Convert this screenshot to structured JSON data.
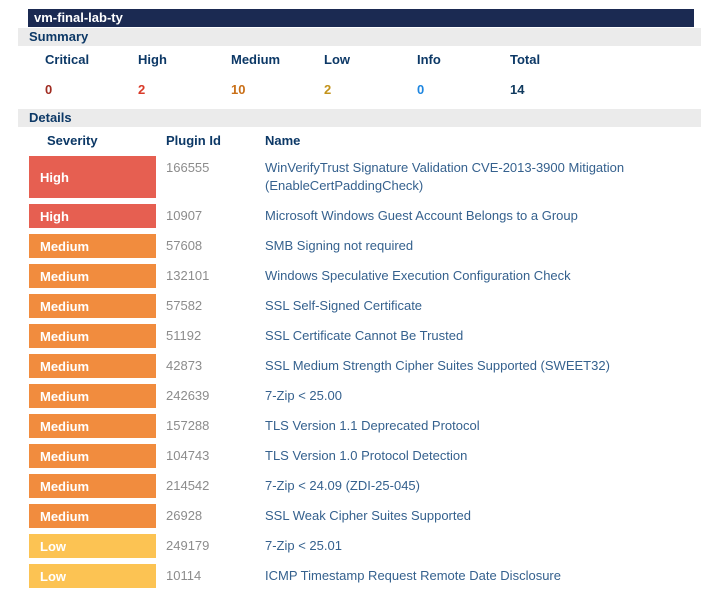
{
  "window": {
    "title": "vm-final-lab-ty"
  },
  "summary": {
    "heading": "Summary",
    "columns": [
      {
        "label": "Critical",
        "value": "0",
        "color": "#a02c21"
      },
      {
        "label": "High",
        "value": "2",
        "color": "#d93a28"
      },
      {
        "label": "Medium",
        "value": "10",
        "color": "#c96f17"
      },
      {
        "label": "Low",
        "value": "2",
        "color": "#c3931b"
      },
      {
        "label": "Info",
        "value": "0",
        "color": "#1e86e0"
      },
      {
        "label": "Total",
        "value": "14",
        "color": "#103a5e"
      }
    ]
  },
  "details": {
    "heading": "Details",
    "headers": {
      "severity": "Severity",
      "plugin_id": "Plugin Id",
      "name": "Name"
    },
    "severity_colors": {
      "High": "#e65f51",
      "Medium": "#f18c3e",
      "Low": "#fcc353"
    },
    "rows": [
      {
        "severity": "High",
        "plugin_id": "166555",
        "name": "WinVerifyTrust Signature Validation CVE-2013-3900 Mitigation (EnableCertPaddingCheck)"
      },
      {
        "severity": "High",
        "plugin_id": "10907",
        "name": "Microsoft Windows Guest Account Belongs to a Group"
      },
      {
        "severity": "Medium",
        "plugin_id": "57608",
        "name": "SMB Signing not required"
      },
      {
        "severity": "Medium",
        "plugin_id": "132101",
        "name": "Windows Speculative Execution Configuration Check"
      },
      {
        "severity": "Medium",
        "plugin_id": "57582",
        "name": "SSL Self-Signed Certificate"
      },
      {
        "severity": "Medium",
        "plugin_id": "51192",
        "name": "SSL Certificate Cannot Be Trusted"
      },
      {
        "severity": "Medium",
        "plugin_id": "42873",
        "name": "SSL Medium Strength Cipher Suites Supported (SWEET32)"
      },
      {
        "severity": "Medium",
        "plugin_id": "242639",
        "name": "7-Zip < 25.00"
      },
      {
        "severity": "Medium",
        "plugin_id": "157288",
        "name": "TLS Version 1.1 Deprecated Protocol"
      },
      {
        "severity": "Medium",
        "plugin_id": "104743",
        "name": "TLS Version 1.0 Protocol Detection"
      },
      {
        "severity": "Medium",
        "plugin_id": "214542",
        "name": "7-Zip < 24.09 (ZDI-25-045)"
      },
      {
        "severity": "Medium",
        "plugin_id": "26928",
        "name": "SSL Weak Cipher Suites Supported"
      },
      {
        "severity": "Low",
        "plugin_id": "249179",
        "name": "7-Zip < 25.01"
      },
      {
        "severity": "Low",
        "plugin_id": "10114",
        "name": "ICMP Timestamp Request Remote Date Disclosure"
      }
    ]
  }
}
